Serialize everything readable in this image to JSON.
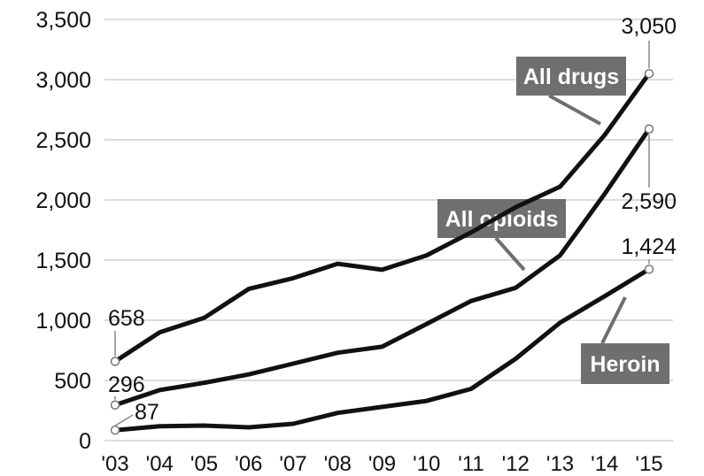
{
  "chart_data": {
    "type": "line",
    "x": [
      "'03",
      "'04",
      "'05",
      "'06",
      "'07",
      "'08",
      "'09",
      "'10",
      "'11",
      "'12",
      "'13",
      "'14",
      "'15"
    ],
    "ylim": [
      0,
      3500
    ],
    "yticks": [
      0,
      500,
      1000,
      1500,
      2000,
      2500,
      3000,
      3500
    ],
    "ytick_labels": [
      "0",
      "500",
      "1,000",
      "1,500",
      "2,000",
      "2,500",
      "3,000",
      "3,500"
    ],
    "grid": "horizontal",
    "series": [
      {
        "name": "All drugs",
        "values": [
          658,
          900,
          1020,
          1260,
          1350,
          1470,
          1420,
          1540,
          1730,
          1940,
          2110,
          2540,
          3050
        ]
      },
      {
        "name": "All opioids",
        "values": [
          296,
          420,
          480,
          550,
          640,
          730,
          780,
          970,
          1160,
          1270,
          1540,
          2050,
          2590
        ]
      },
      {
        "name": "Heroin",
        "values": [
          87,
          120,
          125,
          110,
          140,
          230,
          280,
          330,
          430,
          680,
          980,
          1200,
          1424
        ]
      }
    ],
    "annotations": {
      "start_labels": [
        "658",
        "296",
        "87"
      ],
      "end_labels": [
        "3,050",
        "2,590",
        "1,424"
      ]
    },
    "colors": {
      "line": "#111111",
      "grid": "#dcdcdc",
      "tag_fill": "#6f6f6f",
      "tag_text": "#ffffff"
    }
  }
}
